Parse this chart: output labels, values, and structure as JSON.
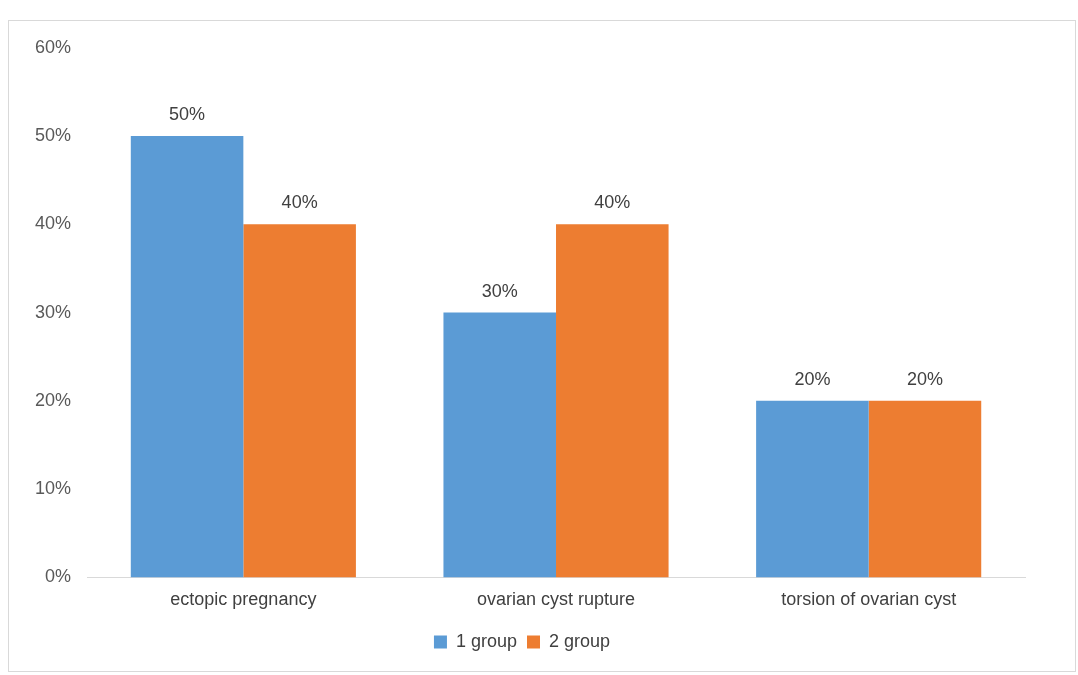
{
  "chart_data": {
    "type": "bar",
    "categories": [
      "ectopic pregnancy",
      "ovarian cyst rupture",
      "torsion of ovarian cyst"
    ],
    "series": [
      {
        "name": "1 group",
        "color": "#5b9bd5",
        "values": [
          50,
          30,
          20
        ],
        "value_labels": [
          "50%",
          "30%",
          "20%"
        ]
      },
      {
        "name": "2 group",
        "color": "#ed7d31",
        "values": [
          40,
          40,
          20
        ],
        "value_labels": [
          "40%",
          "40%",
          "20%"
        ]
      }
    ],
    "ylim": [
      0,
      60
    ],
    "yticks": [
      {
        "value": 0,
        "label": "0%"
      },
      {
        "value": 10,
        "label": "10%"
      },
      {
        "value": 20,
        "label": "20%"
      },
      {
        "value": 30,
        "label": "30%"
      },
      {
        "value": 40,
        "label": "40%"
      },
      {
        "value": 50,
        "label": "50%"
      },
      {
        "value": 60,
        "label": "60%"
      }
    ],
    "grid": false,
    "legend": "bottom"
  }
}
